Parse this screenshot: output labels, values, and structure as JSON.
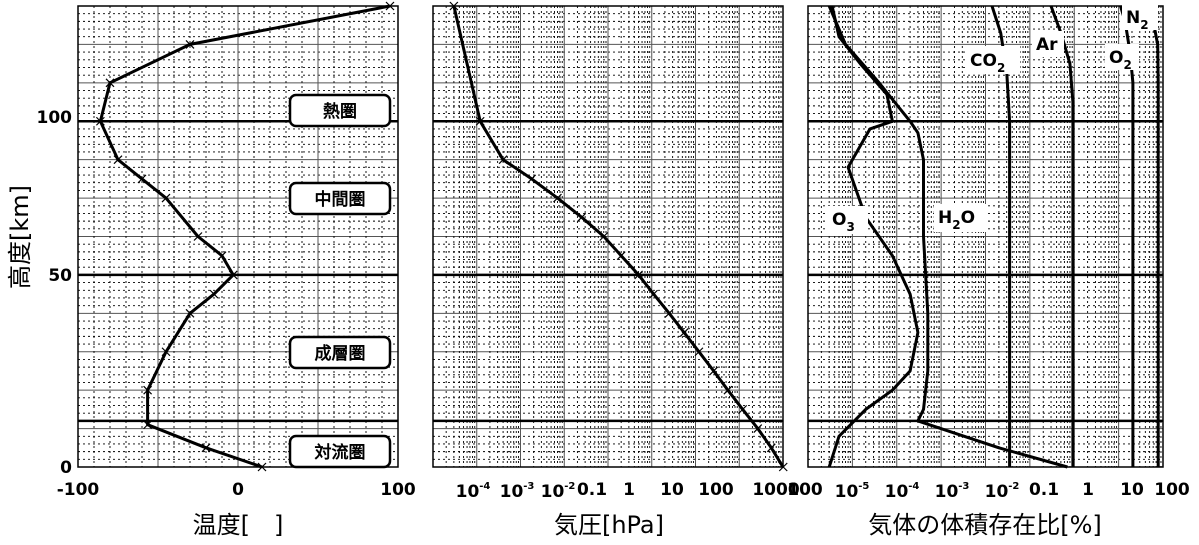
{
  "chart_data": [
    {
      "type": "line",
      "xlabel": "温度[　]",
      "ylabel": "高度[km]",
      "xlim": [
        -100,
        100
      ],
      "ylim": [
        0,
        120
      ],
      "x_ticks": [
        "-100",
        "0",
        "100"
      ],
      "y_ticks": [
        "0",
        "50",
        "100"
      ],
      "layer_boundaries_km": [
        12,
        50,
        90
      ],
      "layers": [
        {
          "label": "熱圏",
          "y": 105
        },
        {
          "label": "中間圏",
          "y": 70
        },
        {
          "label": "成層圏",
          "y": 30
        },
        {
          "label": "対流圏",
          "y": 5
        }
      ],
      "series": [
        {
          "x": [
            15,
            -20,
            -56.5,
            -56.5,
            -45,
            -30,
            -15,
            -3,
            -10,
            -25,
            -45,
            -60,
            -75,
            -86,
            -80,
            -30,
            95
          ],
          "y": [
            0,
            5,
            11,
            20,
            30,
            40,
            45,
            50,
            55,
            60,
            70,
            75,
            80,
            90,
            100,
            110,
            120
          ]
        }
      ]
    },
    {
      "type": "line",
      "xlabel": "気圧[hPa]",
      "xscale": "log",
      "xlim": [
        1e-05,
        1000
      ],
      "ylim": [
        0,
        120
      ],
      "x_ticks": [
        {
          "base": "10",
          "exp": "-4"
        },
        {
          "base": "10",
          "exp": "-3"
        },
        {
          "base": "10",
          "exp": "-2"
        },
        {
          "base": "0.1",
          "exp": ""
        },
        {
          "base": "1",
          "exp": ""
        },
        {
          "base": "10",
          "exp": ""
        },
        {
          "base": "100",
          "exp": ""
        },
        {
          "base": "1000",
          "exp": ""
        }
      ],
      "layer_boundaries_km": [
        12,
        50,
        90
      ],
      "series": [
        {
          "x": [
            1013,
            540,
            265,
            120,
            55,
            26,
            12,
            5.5,
            2.5,
            1.1,
            0.5,
            0.2,
            0.08,
            0.025,
            0.007,
            0.0018,
            0.0004,
            0.00012,
            3e-05
          ],
          "y": [
            0,
            5,
            10,
            15,
            20,
            25,
            30,
            35,
            40,
            45,
            50,
            55,
            60,
            65,
            70,
            75,
            80,
            90,
            120
          ]
        }
      ]
    },
    {
      "type": "line",
      "xlabel": "気体の体積存在比[%]",
      "xscale": "log",
      "xlim": [
        1e-06,
        100
      ],
      "ylim": [
        0,
        120
      ],
      "x_ticks": [
        {
          "base": "100",
          "exp": ""
        },
        {
          "base": "10",
          "exp": "-5"
        },
        {
          "base": "10",
          "exp": "-4"
        },
        {
          "base": "10",
          "exp": "-3"
        },
        {
          "base": "10",
          "exp": "-2"
        },
        {
          "base": "0.1",
          "exp": ""
        },
        {
          "base": "1",
          "exp": ""
        },
        {
          "base": "10",
          "exp": ""
        },
        {
          "base": "100",
          "exp": ""
        }
      ],
      "layer_boundaries_km": [
        12,
        50,
        90
      ],
      "series": [
        {
          "name": "N",
          "name_sub": "2",
          "x": [
            78,
            78,
            76,
            60,
            45
          ],
          "y": [
            0,
            100,
            110,
            116,
            120
          ]
        },
        {
          "name": "O",
          "name_sub": "2",
          "x": [
            21,
            21,
            18,
            14,
            11
          ],
          "y": [
            0,
            100,
            108,
            116,
            120
          ]
        },
        {
          "name": "Ar",
          "x": [
            0.93,
            0.93,
            0.8,
            0.5,
            0.3
          ],
          "y": [
            0,
            95,
            105,
            113,
            120
          ]
        },
        {
          "name": "CO",
          "name_sub": "2",
          "x": [
            0.035,
            0.035,
            0.03,
            0.022,
            0.014
          ],
          "y": [
            0,
            90,
            103,
            113,
            120
          ]
        },
        {
          "name": "H",
          "name_sub": "2",
          "name_rest": "O",
          "x": [
            0.7,
            0.02,
            0.0003,
            0.0004,
            0.0005,
            0.0005,
            0.0004,
            0.0004,
            0.0004,
            0.0003,
            0.0002,
            4e-05,
            7e-06,
            3e-06
          ],
          "y": [
            0,
            5,
            12,
            15,
            25,
            40,
            60,
            70,
            80,
            87,
            90,
            100,
            110,
            120
          ]
        },
        {
          "name": "O",
          "name_sub": "3",
          "x": [
            3e-06,
            5e-06,
            2e-05,
            8e-05,
            0.0002,
            0.0003,
            0.0002,
            8e-05,
            2e-05,
            8e-06,
            2.5e-05,
            8e-05,
            6e-05,
            1.5e-05,
            5e-06,
            3.5e-06
          ],
          "y": [
            0,
            8,
            15,
            20,
            25,
            35,
            45,
            55,
            65,
            78,
            88,
            90,
            97,
            105,
            112,
            120
          ]
        }
      ]
    }
  ]
}
